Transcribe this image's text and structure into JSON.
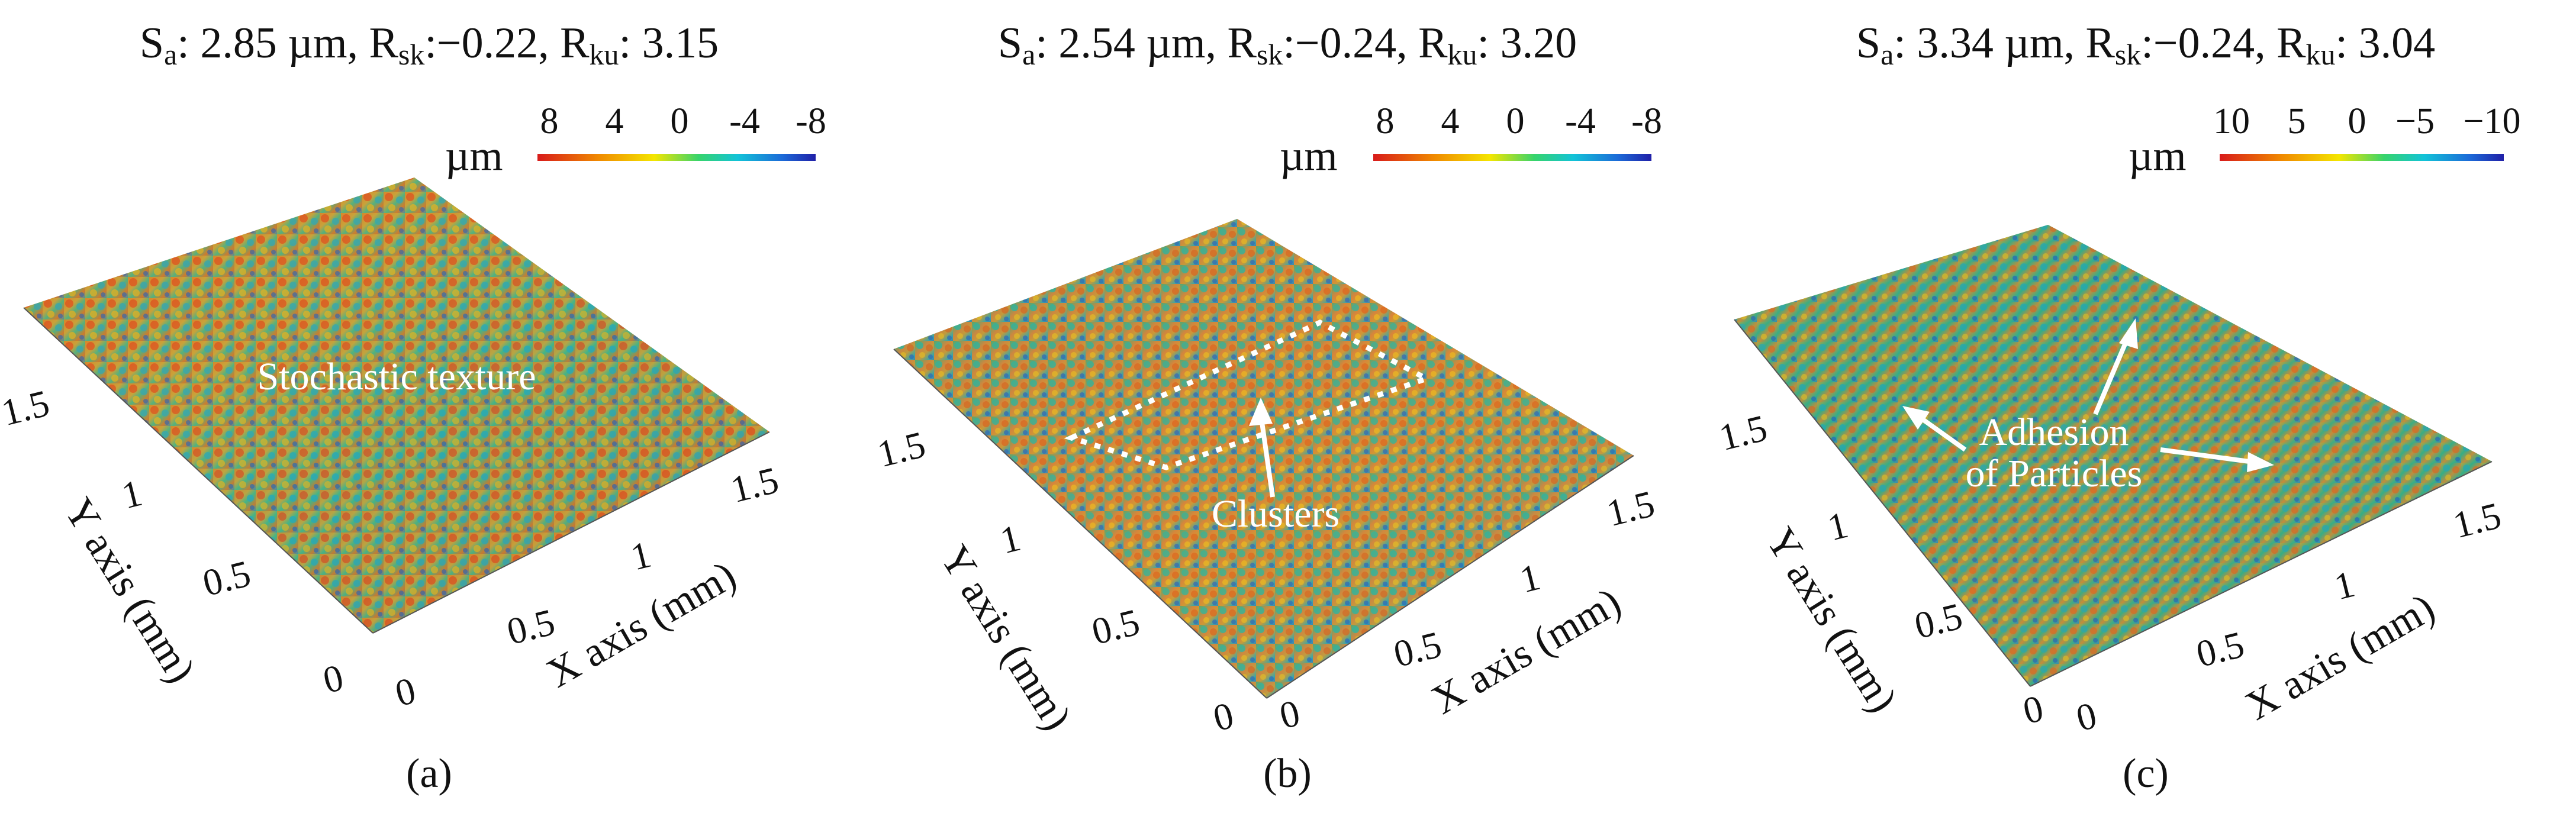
{
  "panels": [
    {
      "title": {
        "sa_sym": "S",
        "sa_sub": "a",
        "sa_val": ": 2.85 µm, ",
        "rsk_sym": "R",
        "rsk_sub": "sk",
        "rsk_val": ":−0.22, ",
        "rku_sym": "R",
        "rku_sub": "ku",
        "rku_val": ": 3.15"
      },
      "colorbar": {
        "unit": "µm",
        "ticks": [
          "8",
          "4",
          "0",
          "-4",
          "-8"
        ]
      },
      "y_ticks": [
        "1.5",
        "1",
        "0.5",
        "0"
      ],
      "x_ticks": [
        "0",
        "0.5",
        "1",
        "1.5"
      ],
      "y_label": "Y axis (mm)",
      "x_label": "X axis (mm)",
      "annotation": "Stochastic texture",
      "caption": "(a)"
    },
    {
      "title": {
        "sa_sym": "S",
        "sa_sub": "a",
        "sa_val": ": 2.54 µm, ",
        "rsk_sym": "R",
        "rsk_sub": "sk",
        "rsk_val": ":−0.24, ",
        "rku_sym": "R",
        "rku_sub": "ku",
        "rku_val": ": 3.20"
      },
      "colorbar": {
        "unit": "µm",
        "ticks": [
          "8",
          "4",
          "0",
          "-4",
          "-8"
        ]
      },
      "y_ticks": [
        "1.5",
        "1",
        "0.5",
        "0"
      ],
      "x_ticks": [
        "0",
        "0.5",
        "1",
        "1.5"
      ],
      "y_label": "Y axis (mm)",
      "x_label": "X axis (mm)",
      "annotation": "Clusters",
      "caption": "(b)"
    },
    {
      "title": {
        "sa_sym": "S",
        "sa_sub": "a",
        "sa_val": ": 3.34 µm, ",
        "rsk_sym": "R",
        "rsk_sub": "sk",
        "rsk_val": ":−0.24, ",
        "rku_sym": "R",
        "rku_sub": "ku",
        "rku_val": ": 3.04"
      },
      "colorbar": {
        "unit": "µm",
        "ticks": [
          "10",
          "5",
          "0",
          "−5",
          "−10"
        ]
      },
      "y_ticks": [
        "1.5",
        "1",
        "0.5",
        "0"
      ],
      "x_ticks": [
        "0",
        "0.5",
        "1",
        "1.5"
      ],
      "y_label": "Y axis (mm)",
      "x_label": "X axis (mm)",
      "annotation_line1": "Adhesion",
      "annotation_line2": "of Particles",
      "caption": "(c)"
    }
  ],
  "colors": {
    "red": "#d81b1b",
    "orange": "#f08a00",
    "yellow": "#f4e600",
    "green": "#36d46c",
    "cyan": "#12c3d8",
    "blue": "#1c6ad8",
    "navy": "#2020a8"
  }
}
